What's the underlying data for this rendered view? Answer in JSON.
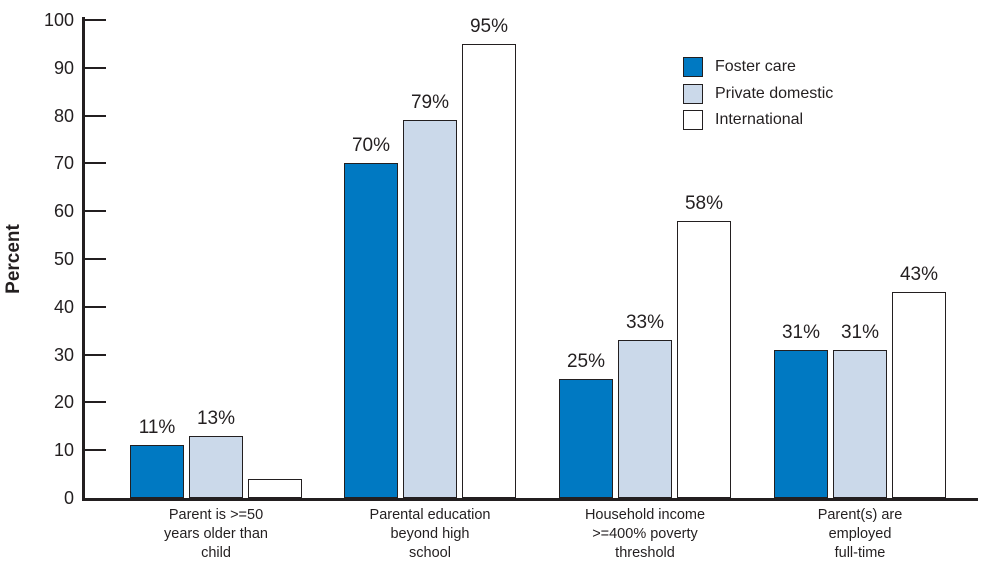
{
  "chart_data": {
    "type": "bar",
    "title": "",
    "ylabel": "Percent",
    "xlabel": "",
    "ylim": [
      0,
      100
    ],
    "ytick_step": 10,
    "grid": false,
    "legend_position": "top-right",
    "categories": [
      [
        "Parent is >=50",
        "years older than",
        "child"
      ],
      [
        "Parental education",
        "beyond high",
        "school"
      ],
      [
        "Household income",
        ">=400% poverty",
        "threshold"
      ],
      [
        "Parent(s) are",
        "employed",
        "full-time"
      ]
    ],
    "series": [
      {
        "name": "Foster care",
        "color": "#0079c2",
        "values": [
          11,
          70,
          25,
          31
        ],
        "labels": [
          "11%",
          "70%",
          "25%",
          "31%"
        ]
      },
      {
        "name": "Private domestic",
        "color": "#cbd9ea",
        "values": [
          13,
          79,
          33,
          31
        ],
        "labels": [
          "13%",
          "79%",
          "33%",
          "31%"
        ]
      },
      {
        "name": "International",
        "color": "#ffffff",
        "values": [
          4,
          95,
          58,
          43
        ],
        "labels": [
          "",
          "95%",
          "58%",
          "43%"
        ]
      }
    ],
    "ink_color": "#231f20"
  }
}
